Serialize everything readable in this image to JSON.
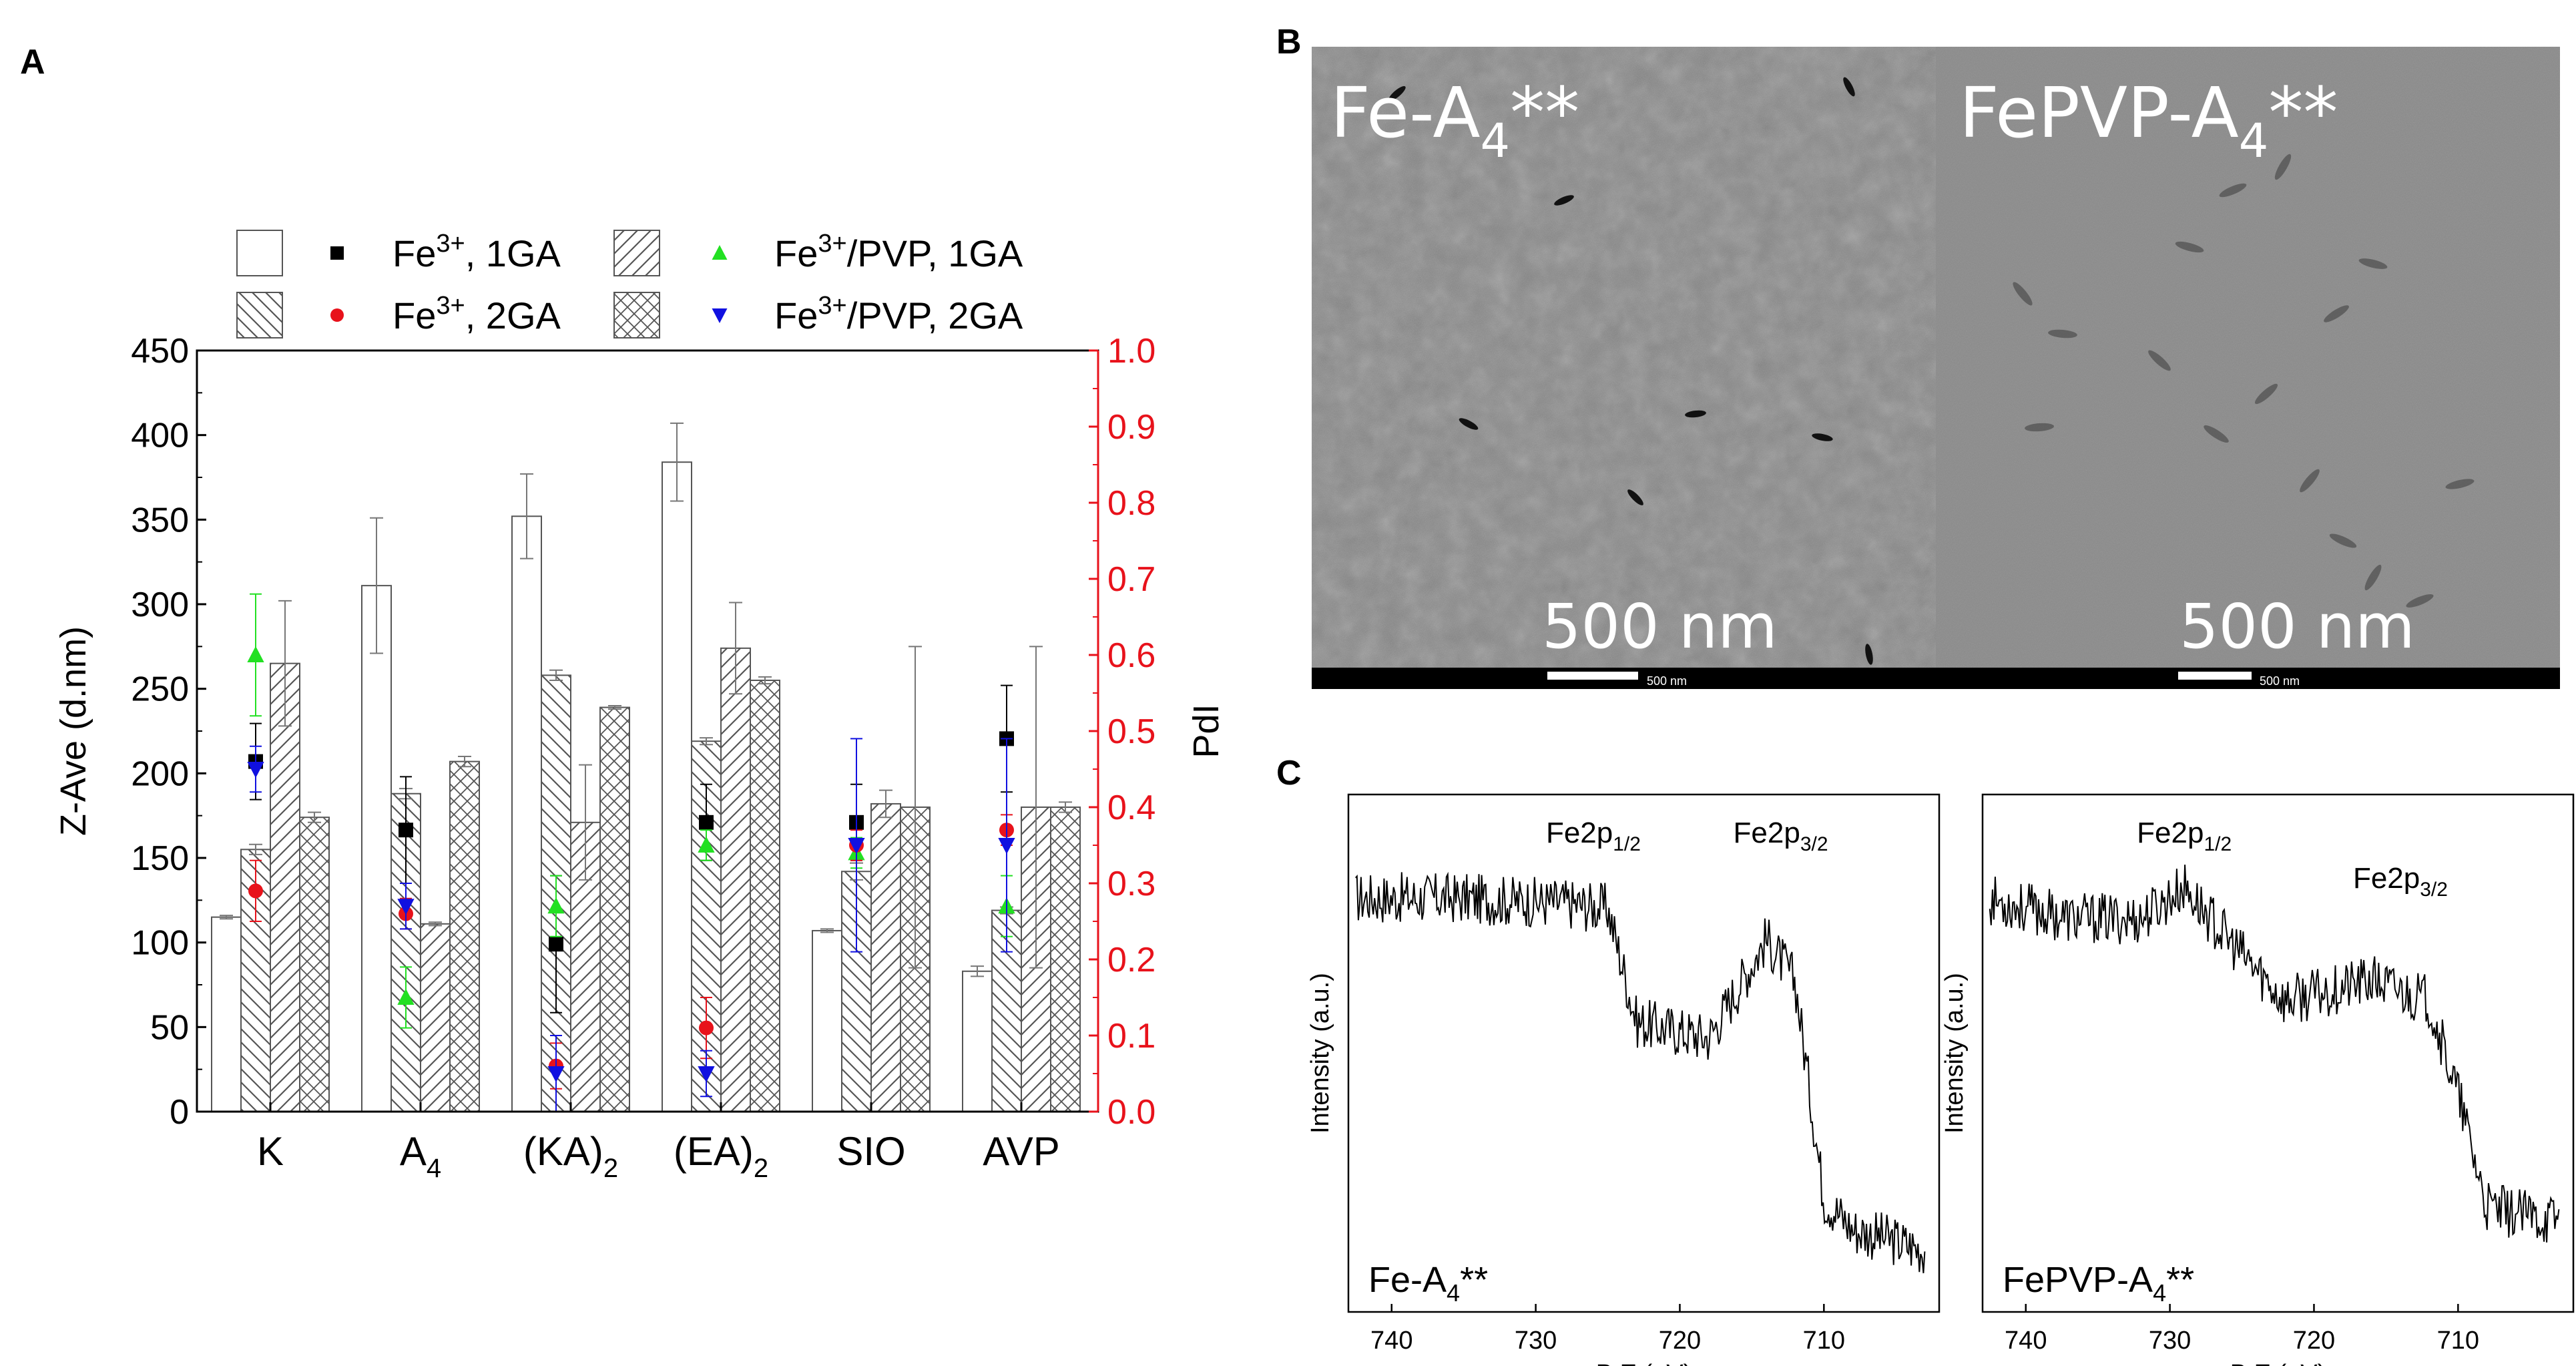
{
  "panels": {
    "a": "A",
    "b": "B",
    "c": "C"
  },
  "chart_data": [
    {
      "panel": "A",
      "type": "bar",
      "categories": [
        "K",
        "A4",
        "(KA)2",
        "(EA)2",
        "SIO",
        "AVP"
      ],
      "category_display": [
        {
          "base": "K",
          "sub": ""
        },
        {
          "base": "A",
          "sub": "4"
        },
        {
          "base": "(KA)",
          "sub": "2"
        },
        {
          "base": "(EA)",
          "sub": "2"
        },
        {
          "base": "SIO",
          "sub": ""
        },
        {
          "base": "AVP",
          "sub": ""
        }
      ],
      "ylabel": "Z-Ave (d.nm)",
      "ylim": [
        0,
        450
      ],
      "yticks": [
        0,
        50,
        100,
        150,
        200,
        250,
        300,
        350,
        400,
        450
      ],
      "y2label": "PdI",
      "y2lim": [
        0,
        1.0
      ],
      "y2ticks": [
        "0.0",
        "0.1",
        "0.2",
        "0.3",
        "0.4",
        "0.5",
        "0.6",
        "0.7",
        "0.8",
        "0.9",
        "1.0"
      ],
      "y2_color": "#e8121b",
      "bar_series": [
        {
          "name": "Fe3+, 1GA",
          "pattern": "blank",
          "values": [
            115,
            311,
            352,
            384,
            107,
            83
          ],
          "errors": [
            1,
            40,
            25,
            23,
            1,
            3
          ]
        },
        {
          "name": "Fe3+, 2GA",
          "pattern": "backslash",
          "values": [
            155,
            188,
            258,
            219,
            142,
            119
          ],
          "errors": [
            3,
            3,
            3,
            2,
            5,
            2
          ]
        },
        {
          "name": "Fe3+/PVP, 1GA",
          "pattern": "slash",
          "values": [
            265,
            111,
            171,
            274,
            182,
            180
          ],
          "errors": [
            37,
            1,
            34,
            27,
            8,
            95
          ]
        },
        {
          "name": "Fe3+/PVP, 2GA",
          "pattern": "cross",
          "values": [
            174,
            207,
            239,
            255,
            180,
            180
          ],
          "errors": [
            3,
            3,
            1,
            2,
            95,
            3
          ]
        }
      ],
      "pdi_series": [
        {
          "name": "Fe3+, 1GA",
          "marker": "square",
          "color": "#000000",
          "values": [
            0.46,
            0.37,
            0.22,
            0.38,
            0.38,
            0.49
          ],
          "errors": [
            0.05,
            0.07,
            0.09,
            0.05,
            0.05,
            0.07
          ]
        },
        {
          "name": "Fe3+, 2GA",
          "marker": "triangle-up",
          "color": "#22e022",
          "values": [
            0.6,
            0.15,
            0.27,
            0.35,
            0.34,
            0.27
          ],
          "errors": [
            0.08,
            0.04,
            0.04,
            0.02,
            0.02,
            0.04
          ]
        },
        {
          "name": "Fe3+/PVP, 1GA",
          "marker": "circle",
          "color": "#e8121b",
          "values": [
            0.29,
            0.26,
            0.06,
            0.11,
            0.35,
            0.37
          ],
          "errors": [
            0.04,
            0.02,
            0.03,
            0.04,
            0.02,
            0.02
          ]
        },
        {
          "name": "Fe3+/PVP, 2GA",
          "marker": "triangle-down",
          "color": "#1010e0",
          "values": [
            0.45,
            0.27,
            0.05,
            0.05,
            0.35,
            0.35
          ],
          "errors": [
            0.03,
            0.03,
            0.05,
            0.03,
            0.14,
            0.14
          ]
        }
      ],
      "legend": {
        "placement": "top",
        "entries": [
          {
            "base": "Fe",
            "sup": "3+",
            "rest": ", 1GA"
          },
          {
            "base": "Fe",
            "sup": "3+",
            "rest": "/PVP, 1GA"
          },
          {
            "base": "Fe",
            "sup": "3+",
            "rest": ", 2GA"
          },
          {
            "base": "Fe",
            "sup": "3+",
            "rest": "/PVP, 2GA"
          }
        ]
      }
    },
    {
      "panel": "C",
      "type": "line",
      "title": "Fe-A4**",
      "xlabel": "B.E.(eV)",
      "ylabel": "Intensity (a.u.)",
      "xlim": [
        743,
        702
      ],
      "xticks": [
        740,
        730,
        720,
        710
      ],
      "peaks": [
        {
          "base": "Fe2p",
          "sub": "1/2",
          "x": 726
        },
        {
          "base": "Fe2p",
          "sub": "3/2",
          "x": 713
        }
      ],
      "profile": [
        [
          743,
          0.8
        ],
        [
          736,
          0.8
        ],
        [
          728,
          0.79
        ],
        [
          725,
          0.78
        ],
        [
          723,
          0.56
        ],
        [
          718,
          0.53
        ],
        [
          714,
          0.72
        ],
        [
          712,
          0.64
        ],
        [
          710,
          0.22
        ],
        [
          708,
          0.16
        ],
        [
          703,
          0.12
        ]
      ]
    },
    {
      "panel": "C",
      "type": "line",
      "title": "FePVP-A4**",
      "xlabel": "B.E.(eV)",
      "ylabel": "Intensity (a.u.)",
      "xlim": [
        743,
        702
      ],
      "xticks": [
        740,
        730,
        720,
        710
      ],
      "peaks": [
        {
          "base": "Fe2p",
          "sub": "1/2",
          "x": 729
        },
        {
          "base": "Fe2p",
          "sub": "3/2",
          "x": 714
        }
      ],
      "profile": [
        [
          743,
          0.8
        ],
        [
          737,
          0.76
        ],
        [
          732,
          0.76
        ],
        [
          729,
          0.82
        ],
        [
          726,
          0.72
        ],
        [
          722,
          0.6
        ],
        [
          716,
          0.64
        ],
        [
          712,
          0.6
        ],
        [
          710,
          0.42
        ],
        [
          708,
          0.2
        ],
        [
          704,
          0.18
        ]
      ]
    }
  ],
  "microscopy": {
    "left": {
      "label_base": "Fe-A",
      "label_sub": "4",
      "label_tail": "**",
      "scale_text": "500 nm",
      "bar_text": "500 nm"
    },
    "right": {
      "label_base": "FePVP-A",
      "label_sub": "4",
      "label_tail": "**",
      "scale_text": "500 nm",
      "bar_text": "500 nm"
    }
  },
  "colors": {
    "pdi_axis": "#e8121b",
    "em_background": "#7d7d7d"
  }
}
